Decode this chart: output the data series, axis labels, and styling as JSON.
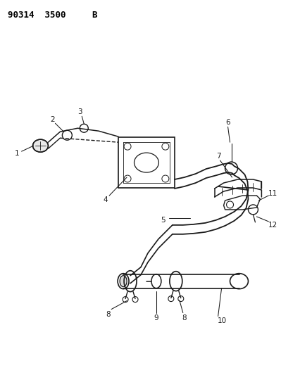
{
  "background_color": "#ffffff",
  "line_color": "#1a1a1a",
  "figsize": [
    3.99,
    5.33
  ],
  "dpi": 100,
  "header": "90314  3500B"
}
